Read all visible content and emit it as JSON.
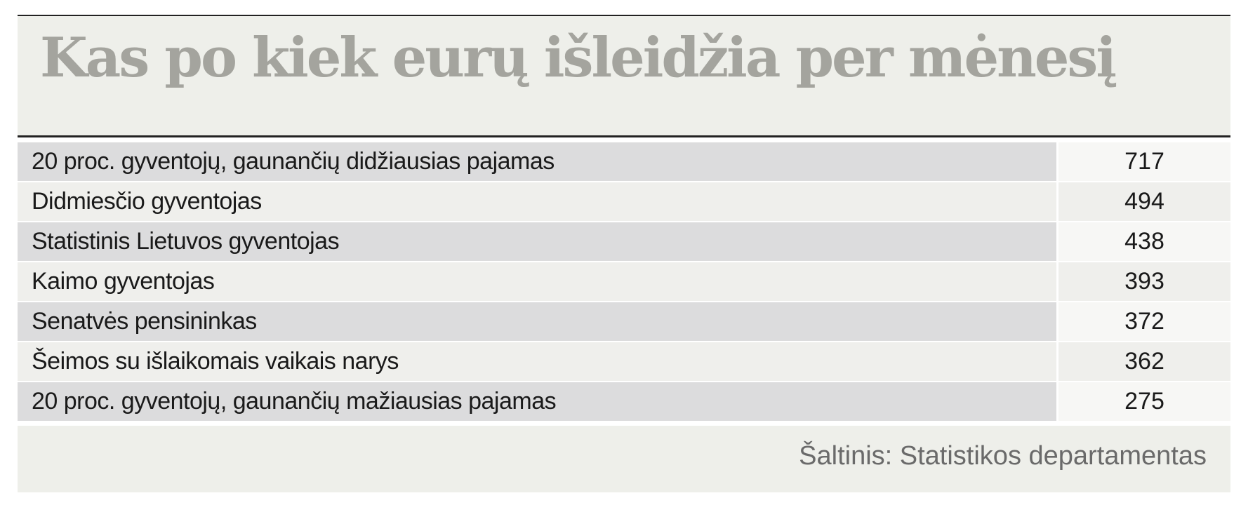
{
  "title": "Kas po kiek eurų išleidžia per mėnesį",
  "table": {
    "rows": [
      [
        "20 proc. gyventojų, gaunančių didžiausias pajamas",
        717
      ],
      [
        "Didmiesčio gyventojas",
        494
      ],
      [
        "Statistinis Lietuvos gyventojas",
        438
      ],
      [
        "Kaimo gyventojas",
        393
      ],
      [
        "Senatvės pensininkas",
        372
      ],
      [
        "Šeimos su išlaikomais vaikais narys",
        362
      ],
      [
        "20 proc. gyventojų, gaunančių mažiausias pajamas",
        275
      ]
    ]
  },
  "source": "Šaltinis: Statistikos departamentas"
}
